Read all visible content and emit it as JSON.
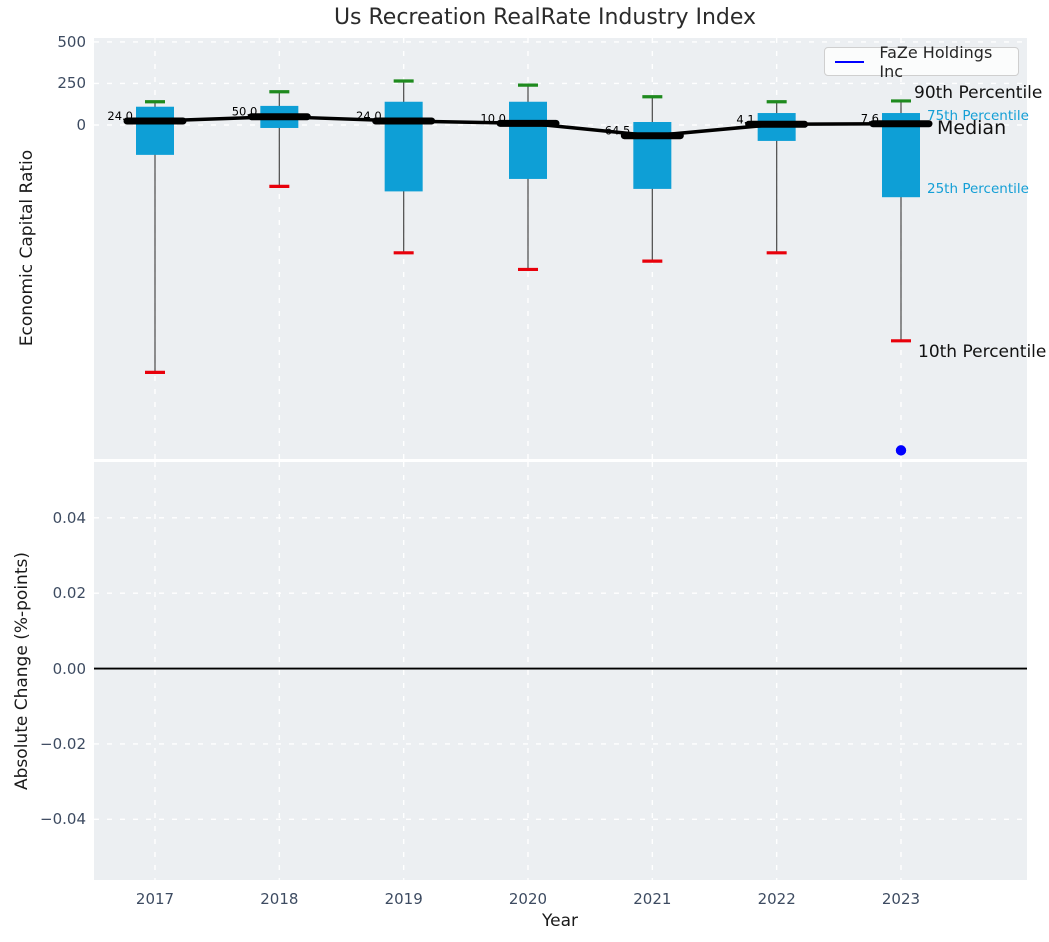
{
  "title": "Us Recreation RealRate Industry Index",
  "legend": {
    "label": "FaZe Holdings Inc"
  },
  "axes": {
    "top": {
      "ylabel": "Economic Capital Ratio",
      "yticks": [
        {
          "label": "500",
          "value": 500
        },
        {
          "label": "250",
          "value": 250
        },
        {
          "label": "0",
          "value": 0
        }
      ]
    },
    "bottom": {
      "ylabel": "Absolute Change (%-points)",
      "xlabel": "Year",
      "yticks": [
        {
          "label": "0.04",
          "value": 0.04
        },
        {
          "label": "0.02",
          "value": 0.02
        },
        {
          "label": "0.00",
          "value": 0
        },
        {
          "label": "−0.02",
          "value": -0.02
        },
        {
          "label": "−0.04",
          "value": -0.04
        }
      ]
    }
  },
  "side_labels": {
    "p90": "90th Percentile",
    "p75": "75th Percentile",
    "median": "Median",
    "p25": "25th Percentile",
    "p10": "10th Percentile"
  },
  "colors": {
    "box": "#0E9FD6",
    "p90_cap": "#1E8A1E",
    "p10_cap": "#E8000B",
    "median_line": "#000000",
    "company": "#0000FF",
    "axes_bg": "#ECEFF2",
    "grid": "#FFFFFF",
    "whisker": "#555555",
    "tick_text": "#3D4B61",
    "title_text": "#2B2B2B",
    "percentile_label_blue": "#149FD6"
  },
  "chart_data": {
    "type": "box",
    "title": "Us Recreation RealRate Industry Index",
    "xlabel": "Year",
    "categories": [
      "2017",
      "2018",
      "2019",
      "2020",
      "2021",
      "2022",
      "2023"
    ],
    "series": [
      {
        "name": "90th Percentile",
        "values": [
          140,
          200,
          265,
          240,
          170,
          140,
          145
        ]
      },
      {
        "name": "75th Percentile",
        "values": [
          110,
          115,
          140,
          140,
          18,
          72,
          72
        ]
      },
      {
        "name": "Median",
        "values": [
          24.0,
          50.0,
          24.0,
          10.0,
          -64.5,
          4.1,
          7.6
        ]
      },
      {
        "name": "25th Percentile",
        "values": [
          -180,
          -18,
          -400,
          -325,
          -385,
          -96,
          -435
        ]
      },
      {
        "name": "10th Percentile",
        "values": [
          -1490,
          -370,
          -770,
          -870,
          -820,
          -770,
          -1300
        ]
      }
    ],
    "median_labels": [
      "24.0",
      "50.0",
      "24.0",
      "10.0",
      "-64.5",
      "4.1",
      "7.6"
    ],
    "company_series": {
      "name": "FaZe Holdings Inc",
      "points": [
        {
          "x": "2023",
          "y": -1960
        }
      ]
    },
    "top_panel": {
      "ylabel": "Economic Capital Ratio",
      "ylim": [
        -2012,
        524
      ],
      "yticks": [
        0,
        250,
        500
      ],
      "grid": true
    },
    "bottom_panel": {
      "ylabel": "Absolute Change (%-points)",
      "ylim": [
        -0.0561,
        0.0548
      ],
      "yticks": [
        -0.04,
        -0.02,
        0,
        0.02,
        0.04
      ],
      "zero_line": true,
      "grid": true,
      "values": []
    },
    "legend_position": "upper right"
  }
}
